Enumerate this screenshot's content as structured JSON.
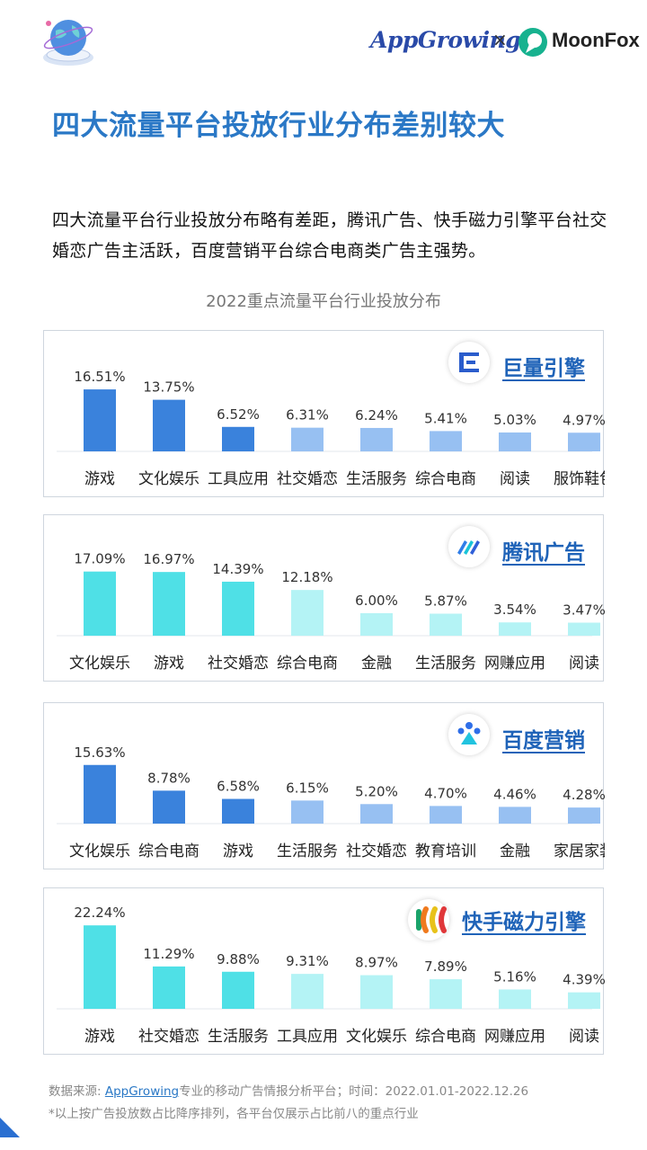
{
  "header": {
    "brand_left": "AppGrowing",
    "separator": "×",
    "brand_right": "MoonFox"
  },
  "page_title": "四大流量平台投放行业分布差别较大",
  "intro": "四大流量平台行业投放分布略有差距，腾讯广告、快手磁力引擎平台社交婚恋广告主活跃，百度营销平台综合电商类广告主强势。",
  "chart_title": "2022重点流量平台行业投放分布",
  "colors": {
    "title_blue": "#2a78c6",
    "panel_border": "#cfd6de"
  },
  "chart_data": [
    {
      "type": "bar",
      "platform": "巨量引擎",
      "categories": [
        "游戏",
        "文化娱乐",
        "工具应用",
        "社交婚恋",
        "生活服务",
        "综合电商",
        "阅读",
        "服饰鞋包"
      ],
      "values": [
        16.51,
        13.75,
        6.52,
        6.31,
        6.24,
        5.41,
        5.03,
        4.97
      ],
      "labels": [
        "16.51%",
        "13.75%",
        "6.52%",
        "6.31%",
        "6.24%",
        "5.41%",
        "5.03%",
        "4.97%"
      ],
      "unit": "%",
      "colors": [
        "#3a82dc",
        "#3a82dc",
        "#3a82dc",
        "#97c0f2",
        "#97c0f2",
        "#97c0f2",
        "#97c0f2",
        "#97c0f2"
      ]
    },
    {
      "type": "bar",
      "platform": "腾讯广告",
      "categories": [
        "文化娱乐",
        "游戏",
        "社交婚恋",
        "综合电商",
        "金融",
        "生活服务",
        "网赚应用",
        "阅读"
      ],
      "values": [
        17.09,
        16.97,
        14.39,
        12.18,
        6.0,
        5.87,
        3.54,
        3.47
      ],
      "labels": [
        "17.09%",
        "16.97%",
        "14.39%",
        "12.18%",
        "6.00%",
        "5.87%",
        "3.54%",
        "3.47%"
      ],
      "unit": "%",
      "colors": [
        "#4fe0e6",
        "#4fe0e6",
        "#4fe0e6",
        "#b4f3f5",
        "#b4f3f5",
        "#b4f3f5",
        "#b4f3f5",
        "#b4f3f5"
      ]
    },
    {
      "type": "bar",
      "platform": "百度营销",
      "categories": [
        "文化娱乐",
        "综合电商",
        "游戏",
        "生活服务",
        "社交婚恋",
        "教育培训",
        "金融",
        "家居家装"
      ],
      "values": [
        15.63,
        8.78,
        6.58,
        6.15,
        5.2,
        4.7,
        4.46,
        4.28
      ],
      "labels": [
        "15.63%",
        "8.78%",
        "6.58%",
        "6.15%",
        "5.20%",
        "4.70%",
        "4.46%",
        "4.28%"
      ],
      "unit": "%",
      "colors": [
        "#3a82dc",
        "#3a82dc",
        "#3a82dc",
        "#97c0f2",
        "#97c0f2",
        "#97c0f2",
        "#97c0f2",
        "#97c0f2"
      ]
    },
    {
      "type": "bar",
      "platform": "快手磁力引擎",
      "categories": [
        "游戏",
        "社交婚恋",
        "生活服务",
        "工具应用",
        "文化娱乐",
        "综合电商",
        "网赚应用",
        "阅读"
      ],
      "values": [
        22.24,
        11.29,
        9.88,
        9.31,
        8.97,
        7.89,
        5.16,
        4.39
      ],
      "labels": [
        "22.24%",
        "11.29%",
        "9.88%",
        "9.31%",
        "8.97%",
        "7.89%",
        "5.16%",
        "4.39%"
      ],
      "unit": "%",
      "colors": [
        "#4fe0e6",
        "#4fe0e6",
        "#4fe0e6",
        "#b4f3f5",
        "#b4f3f5",
        "#b4f3f5",
        "#b4f3f5",
        "#b4f3f5"
      ]
    }
  ],
  "footer": {
    "source_prefix": "数据来源: ",
    "source_link": "AppGrowing",
    "source_suffix": "专业的移动广告情报分析平台；时间：2022.01.01-2022.12.26",
    "note": "*以上按广告投放数占比降序排列，各平台仅展示占比前八的重点行业"
  }
}
